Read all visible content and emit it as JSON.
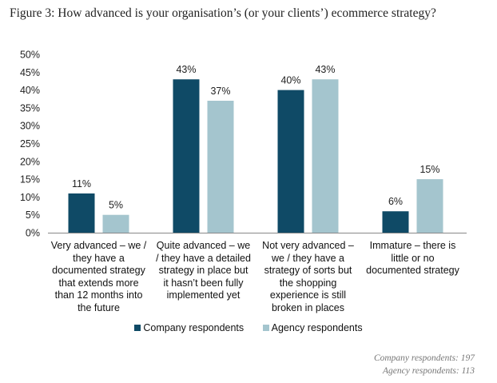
{
  "chart_data": {
    "type": "bar",
    "title": "Figure 3: How advanced is your organisation’s (or your clients’) ecommerce strategy?",
    "categories": [
      [
        "Very advanced – we /",
        "they have a",
        "documented strategy",
        "that extends more",
        "than 12 months into",
        "the future"
      ],
      [
        "Quite advanced – we",
        "/ they have a detailed",
        "strategy in place but",
        "it hasn’t been fully",
        "implemented  yet"
      ],
      [
        "Not very advanced –",
        "we / they have a",
        "strategy of sorts but",
        "the shopping",
        "experience is still",
        "broken in places"
      ],
      [
        "Immature  – there is",
        "little or no",
        "documented strategy"
      ]
    ],
    "series": [
      {
        "name": "Company respondents",
        "color": "#0f4a66",
        "values": [
          11,
          43,
          40,
          6
        ],
        "labels": [
          "11%",
          "43%",
          "40%",
          "6%"
        ]
      },
      {
        "name": "Agency respondents",
        "color": "#a4c5ce",
        "values": [
          5,
          37,
          43,
          15
        ],
        "labels": [
          "5%",
          "37%",
          "43%",
          "15%"
        ]
      }
    ],
    "ylim": [
      0,
      50
    ],
    "yticks": [
      "0%",
      "5%",
      "10%",
      "15%",
      "20%",
      "25%",
      "30%",
      "35%",
      "40%",
      "45%",
      "50%"
    ],
    "xlabel": "",
    "ylabel": "",
    "grid": false,
    "legend": "bottom"
  },
  "notes": [
    "Company respondents: 197",
    "Agency respondents: 113"
  ]
}
